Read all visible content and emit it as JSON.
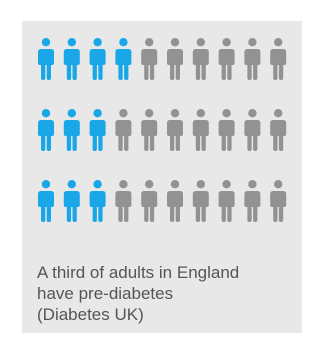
{
  "colors": {
    "highlight": "#1aa7e8",
    "rest": "#929292",
    "card_background": "#e8e8e8",
    "caption_text": "#555555"
  },
  "icon_name": "person-icon",
  "chart_data": {
    "type": "pictogram",
    "rows": [
      {
        "total": 10,
        "highlighted": 4
      },
      {
        "total": 10,
        "highlighted": 3
      },
      {
        "total": 10,
        "highlighted": 3
      }
    ],
    "total_icons": 30,
    "highlighted_icons": 10,
    "highlighted_fraction": 0.3333
  },
  "caption": {
    "lines": [
      "A third of adults in England",
      "have pre-diabetes",
      "(Diabetes UK)"
    ]
  }
}
